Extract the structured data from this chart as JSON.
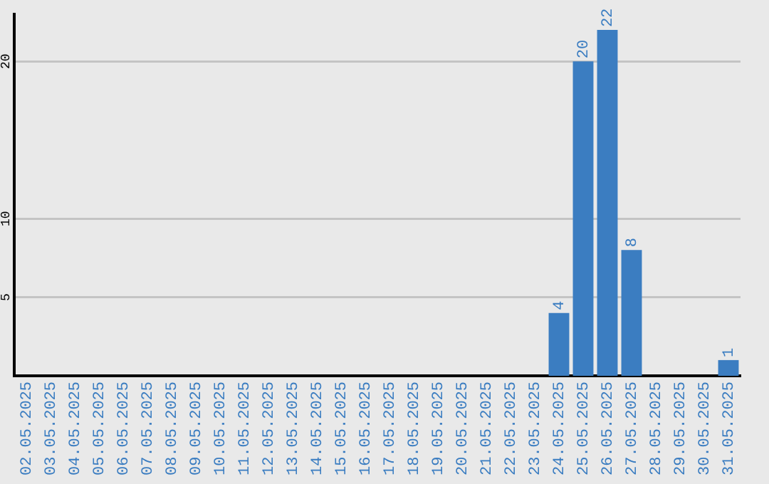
{
  "chart_data": {
    "type": "bar",
    "categories": [
      "02.05.2025",
      "03.05.2025",
      "04.05.2025",
      "05.05.2025",
      "06.05.2025",
      "07.05.2025",
      "08.05.2025",
      "09.05.2025",
      "10.05.2025",
      "11.05.2025",
      "12.05.2025",
      "13.05.2025",
      "14.05.2025",
      "15.05.2025",
      "16.05.2025",
      "17.05.2025",
      "18.05.2025",
      "19.05.2025",
      "20.05.2025",
      "21.05.2025",
      "22.05.2025",
      "23.05.2025",
      "24.05.2025",
      "25.05.2025",
      "26.05.2025",
      "27.05.2025",
      "28.05.2025",
      "29.05.2025",
      "30.05.2025",
      "31.05.2025"
    ],
    "values": [
      0,
      0,
      0,
      0,
      0,
      0,
      0,
      0,
      0,
      0,
      0,
      0,
      0,
      0,
      0,
      0,
      0,
      0,
      0,
      0,
      0,
      0,
      4,
      20,
      22,
      8,
      0,
      0,
      0,
      1
    ],
    "value_labels": [
      null,
      null,
      null,
      null,
      null,
      null,
      null,
      null,
      null,
      null,
      null,
      null,
      null,
      null,
      null,
      null,
      null,
      null,
      null,
      null,
      null,
      null,
      "4",
      "20",
      "22",
      "8",
      null,
      null,
      null,
      "1"
    ],
    "color": "#3b7dc1",
    "ylim": [
      0,
      23
    ],
    "yticks": [
      5,
      10,
      20
    ],
    "grid": "y",
    "legend": false
  }
}
